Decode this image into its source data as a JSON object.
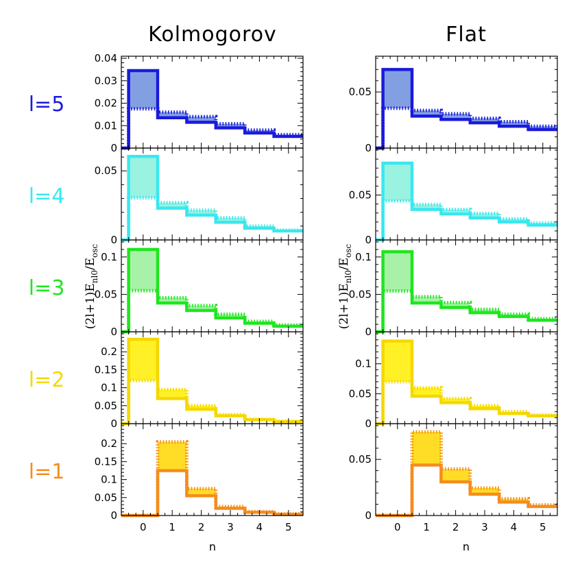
{
  "columns": [
    {
      "title": "Kolmogorov"
    },
    {
      "title": "Flat"
    }
  ],
  "rows": [
    {
      "label": "l=5",
      "color": "#1a1adc",
      "fill": "#6c8fdc"
    },
    {
      "label": "l=4",
      "color": "#38e8f0",
      "fill": "#88f0dc"
    },
    {
      "label": "l=3",
      "color": "#1ee61e",
      "fill": "#99ee99"
    },
    {
      "label": "l=2",
      "color": "#f5d800",
      "fill": "#ffee00"
    },
    {
      "label": "l=1",
      "color": "#f58c1e",
      "fill": "#ffd700"
    }
  ],
  "ylabel_main": "(2l+1)E",
  "ylabel_sub": "nl0",
  "ylabel_slash": "/E",
  "ylabel_sub2": "osc",
  "xlabel": "n",
  "chart_data": [
    {
      "type": "step",
      "column": "Kolmogorov",
      "row": "l=5",
      "x": [
        0,
        1,
        2,
        3,
        4,
        5
      ],
      "series": [
        {
          "style": "solid",
          "values": [
            0.0345,
            0.0135,
            0.0115,
            0.009,
            0.0067,
            0.0052
          ]
        },
        {
          "style": "dotted",
          "values": [
            0.0175,
            0.016,
            0.014,
            0.0108,
            0.008,
            0.006
          ]
        }
      ],
      "ylim": [
        0,
        0.04
      ],
      "yticks": [
        0,
        0.01,
        0.02,
        0.03,
        0.04
      ],
      "ytick_labels": [
        "0",
        "0.01",
        "0.02",
        "0.03",
        "0.04"
      ]
    },
    {
      "type": "step",
      "column": "Kolmogorov",
      "row": "l=4",
      "x": [
        0,
        1,
        2,
        3,
        4,
        5
      ],
      "series": [
        {
          "style": "solid",
          "values": [
            0.0605,
            0.023,
            0.018,
            0.0128,
            0.0085,
            0.0065
          ]
        },
        {
          "style": "dotted",
          "values": [
            0.0305,
            0.027,
            0.0215,
            0.016,
            0.01,
            0.007
          ]
        }
      ],
      "ylim": [
        0,
        0.065
      ],
      "yticks": [
        0,
        0.05
      ],
      "ytick_labels": [
        "0",
        "0.05"
      ]
    },
    {
      "type": "step",
      "column": "Kolmogorov",
      "row": "l=3",
      "x": [
        0,
        1,
        2,
        3,
        4,
        5
      ],
      "series": [
        {
          "style": "solid",
          "values": [
            0.11,
            0.0385,
            0.0285,
            0.0185,
            0.0115,
            0.0075
          ]
        },
        {
          "style": "dotted",
          "values": [
            0.055,
            0.0455,
            0.035,
            0.0235,
            0.014,
            0.009
          ]
        }
      ],
      "ylim": [
        0,
        0.12
      ],
      "yticks": [
        0,
        0.05,
        0.1
      ],
      "ytick_labels": [
        "0",
        "0.05",
        "0.1"
      ]
    },
    {
      "type": "step",
      "column": "Kolmogorov",
      "row": "l=2",
      "x": [
        0,
        1,
        2,
        3,
        4,
        5
      ],
      "series": [
        {
          "style": "solid",
          "values": [
            0.235,
            0.07,
            0.04,
            0.022,
            0.011,
            0.006
          ]
        },
        {
          "style": "dotted",
          "values": [
            0.12,
            0.095,
            0.05,
            0.025,
            0.012,
            0.006
          ]
        }
      ],
      "ylim": [
        0,
        0.25
      ],
      "yticks": [
        0,
        0.05,
        0.1,
        0.15,
        0.2
      ],
      "ytick_labels": [
        "0",
        "0.05",
        "0.1",
        "0.15",
        "0.2"
      ]
    },
    {
      "type": "step",
      "column": "Kolmogorov",
      "row": "l=1",
      "x": [
        0,
        1,
        2,
        3,
        4,
        5
      ],
      "series": [
        {
          "style": "solid",
          "values": [
            0,
            0.125,
            0.055,
            0.02,
            0.009,
            0.003
          ]
        },
        {
          "style": "dotted",
          "values": [
            0,
            0.205,
            0.075,
            0.025,
            0.011,
            0.005
          ]
        }
      ],
      "ylim": [
        0,
        0.25
      ],
      "yticks": [
        0,
        0.05,
        0.1,
        0.15,
        0.2
      ],
      "ytick_labels": [
        "0",
        "0.05",
        "0.1",
        "0.15",
        "0.2"
      ]
    },
    {
      "type": "step",
      "column": "Flat",
      "row": "l=5",
      "x": [
        0,
        1,
        2,
        3,
        4,
        5
      ],
      "series": [
        {
          "style": "solid",
          "values": [
            0.07,
            0.0285,
            0.0255,
            0.0225,
            0.0195,
            0.0165
          ]
        },
        {
          "style": "dotted",
          "values": [
            0.0355,
            0.0335,
            0.0305,
            0.0265,
            0.0235,
            0.0195
          ]
        }
      ],
      "ylim": [
        0,
        0.08
      ],
      "yticks": [
        0,
        0.05
      ],
      "ytick_labels": [
        "0",
        "0.05"
      ]
    },
    {
      "type": "step",
      "column": "Flat",
      "row": "l=4",
      "x": [
        0,
        1,
        2,
        3,
        4,
        5
      ],
      "series": [
        {
          "style": "solid",
          "values": [
            0.0855,
            0.034,
            0.029,
            0.0245,
            0.02,
            0.0165
          ]
        },
        {
          "style": "dotted",
          "values": [
            0.0435,
            0.0395,
            0.034,
            0.0295,
            0.0235,
            0.019
          ]
        }
      ],
      "ylim": [
        0,
        0.1
      ],
      "yticks": [
        0,
        0.05
      ],
      "ytick_labels": [
        "0",
        "0.05"
      ]
    },
    {
      "type": "step",
      "column": "Flat",
      "row": "l=3",
      "x": [
        0,
        1,
        2,
        3,
        4,
        5
      ],
      "series": [
        {
          "style": "solid",
          "values": [
            0.107,
            0.0385,
            0.0325,
            0.0255,
            0.0205,
            0.0155
          ]
        },
        {
          "style": "dotted",
          "values": [
            0.0545,
            0.047,
            0.039,
            0.03,
            0.0235,
            0.0175
          ]
        }
      ],
      "ylim": [
        0,
        0.12
      ],
      "yticks": [
        0,
        0.05,
        0.1
      ],
      "ytick_labels": [
        "0",
        "0.05",
        "0.1"
      ]
    },
    {
      "type": "step",
      "column": "Flat",
      "row": "l=2",
      "x": [
        0,
        1,
        2,
        3,
        4,
        5
      ],
      "series": [
        {
          "style": "solid",
          "values": [
            0.138,
            0.046,
            0.035,
            0.025,
            0.017,
            0.013
          ]
        },
        {
          "style": "dotted",
          "values": [
            0.07,
            0.06,
            0.042,
            0.03,
            0.02,
            0.0145
          ]
        }
      ],
      "ylim": [
        0,
        0.15
      ],
      "yticks": [
        0,
        0.05,
        0.1
      ],
      "ytick_labels": [
        "0",
        "0.05",
        "0.1"
      ]
    },
    {
      "type": "step",
      "column": "Flat",
      "row": "l=1",
      "x": [
        0,
        1,
        2,
        3,
        4,
        5
      ],
      "series": [
        {
          "style": "solid",
          "values": [
            0,
            0.045,
            0.03,
            0.019,
            0.012,
            0.008
          ]
        },
        {
          "style": "dotted",
          "values": [
            0,
            0.0745,
            0.0415,
            0.0245,
            0.015,
            0.0095
          ]
        }
      ],
      "ylim": [
        0,
        0.08
      ],
      "yticks": [
        0,
        0.05
      ],
      "ytick_labels": [
        "0",
        "0.05"
      ]
    }
  ],
  "x_ticks": [
    0,
    1,
    2,
    3,
    4,
    5
  ],
  "x_tick_labels": [
    "0",
    "1",
    "2",
    "3",
    "4",
    "5"
  ],
  "xlim": [
    -0.75,
    5.5
  ]
}
